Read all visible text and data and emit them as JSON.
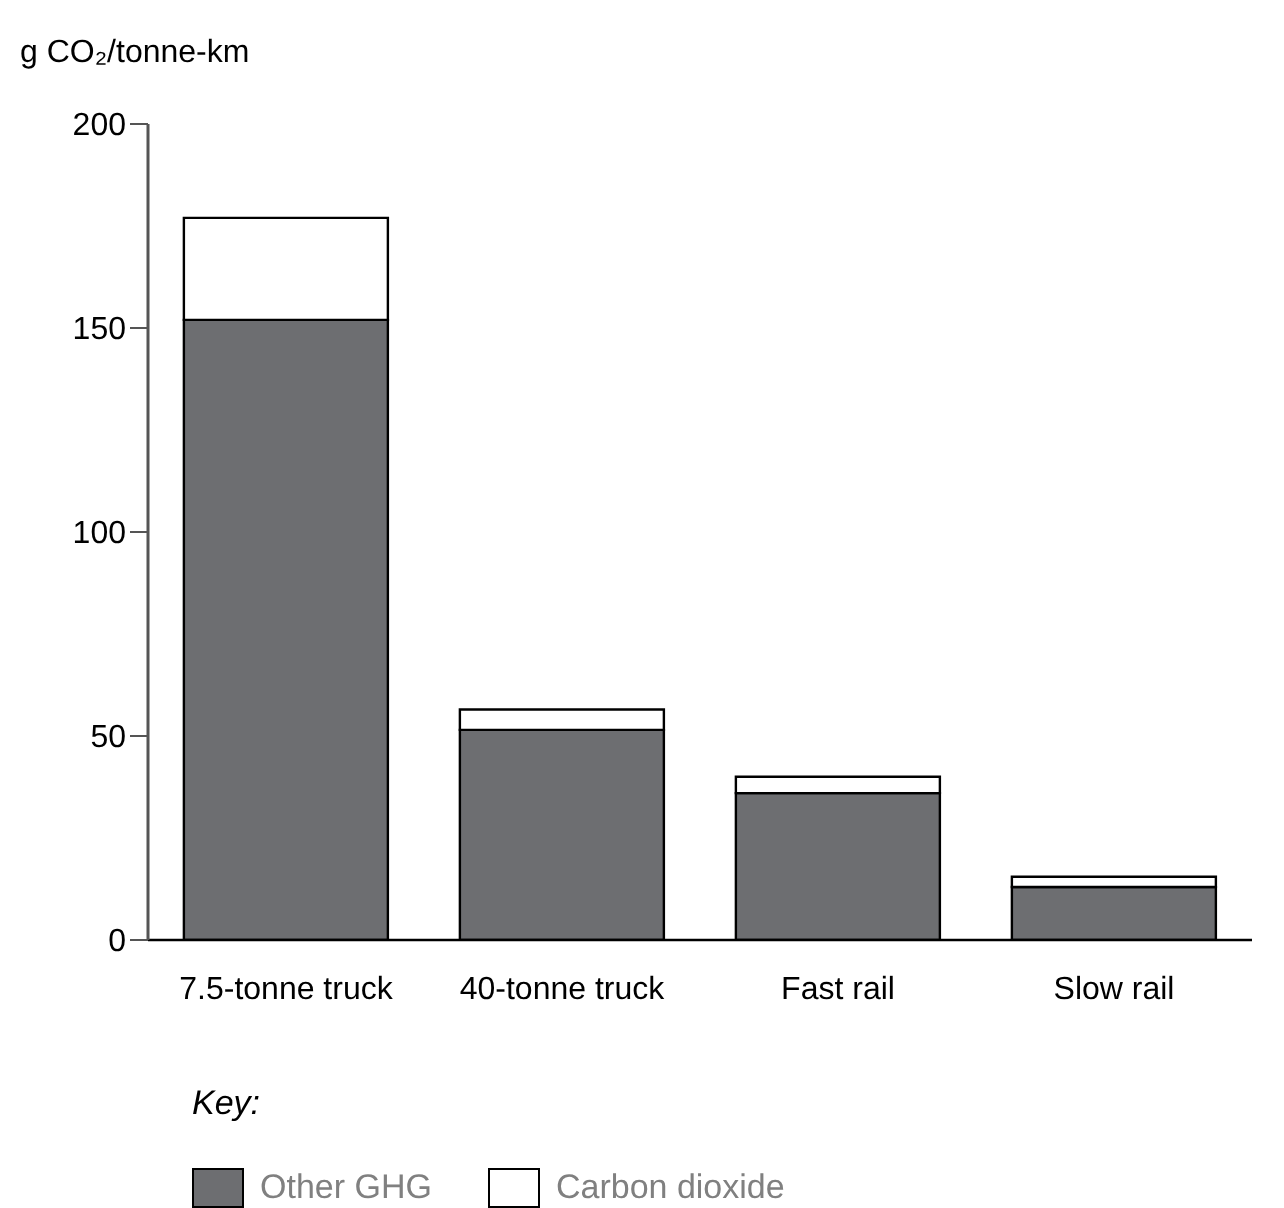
{
  "chart_data": {
    "type": "bar",
    "ylabel": "g CO₂/tonne-km",
    "legend_title": "Key:",
    "categories": [
      "7.5-tonne truck",
      "40-tonne truck",
      "Fast rail",
      "Slow rail"
    ],
    "series": [
      {
        "name": "Other GHG",
        "color": "#6d6e71",
        "values": [
          152,
          51.5,
          36,
          13
        ]
      },
      {
        "name": "Carbon dioxide",
        "color": "#ffffff",
        "values": [
          25,
          5,
          4,
          2.5
        ]
      }
    ],
    "stacked": true,
    "ylim": [
      0,
      200
    ],
    "yticks": [
      0,
      50,
      100,
      150,
      200
    ],
    "grid": false,
    "legend": "bottom"
  }
}
